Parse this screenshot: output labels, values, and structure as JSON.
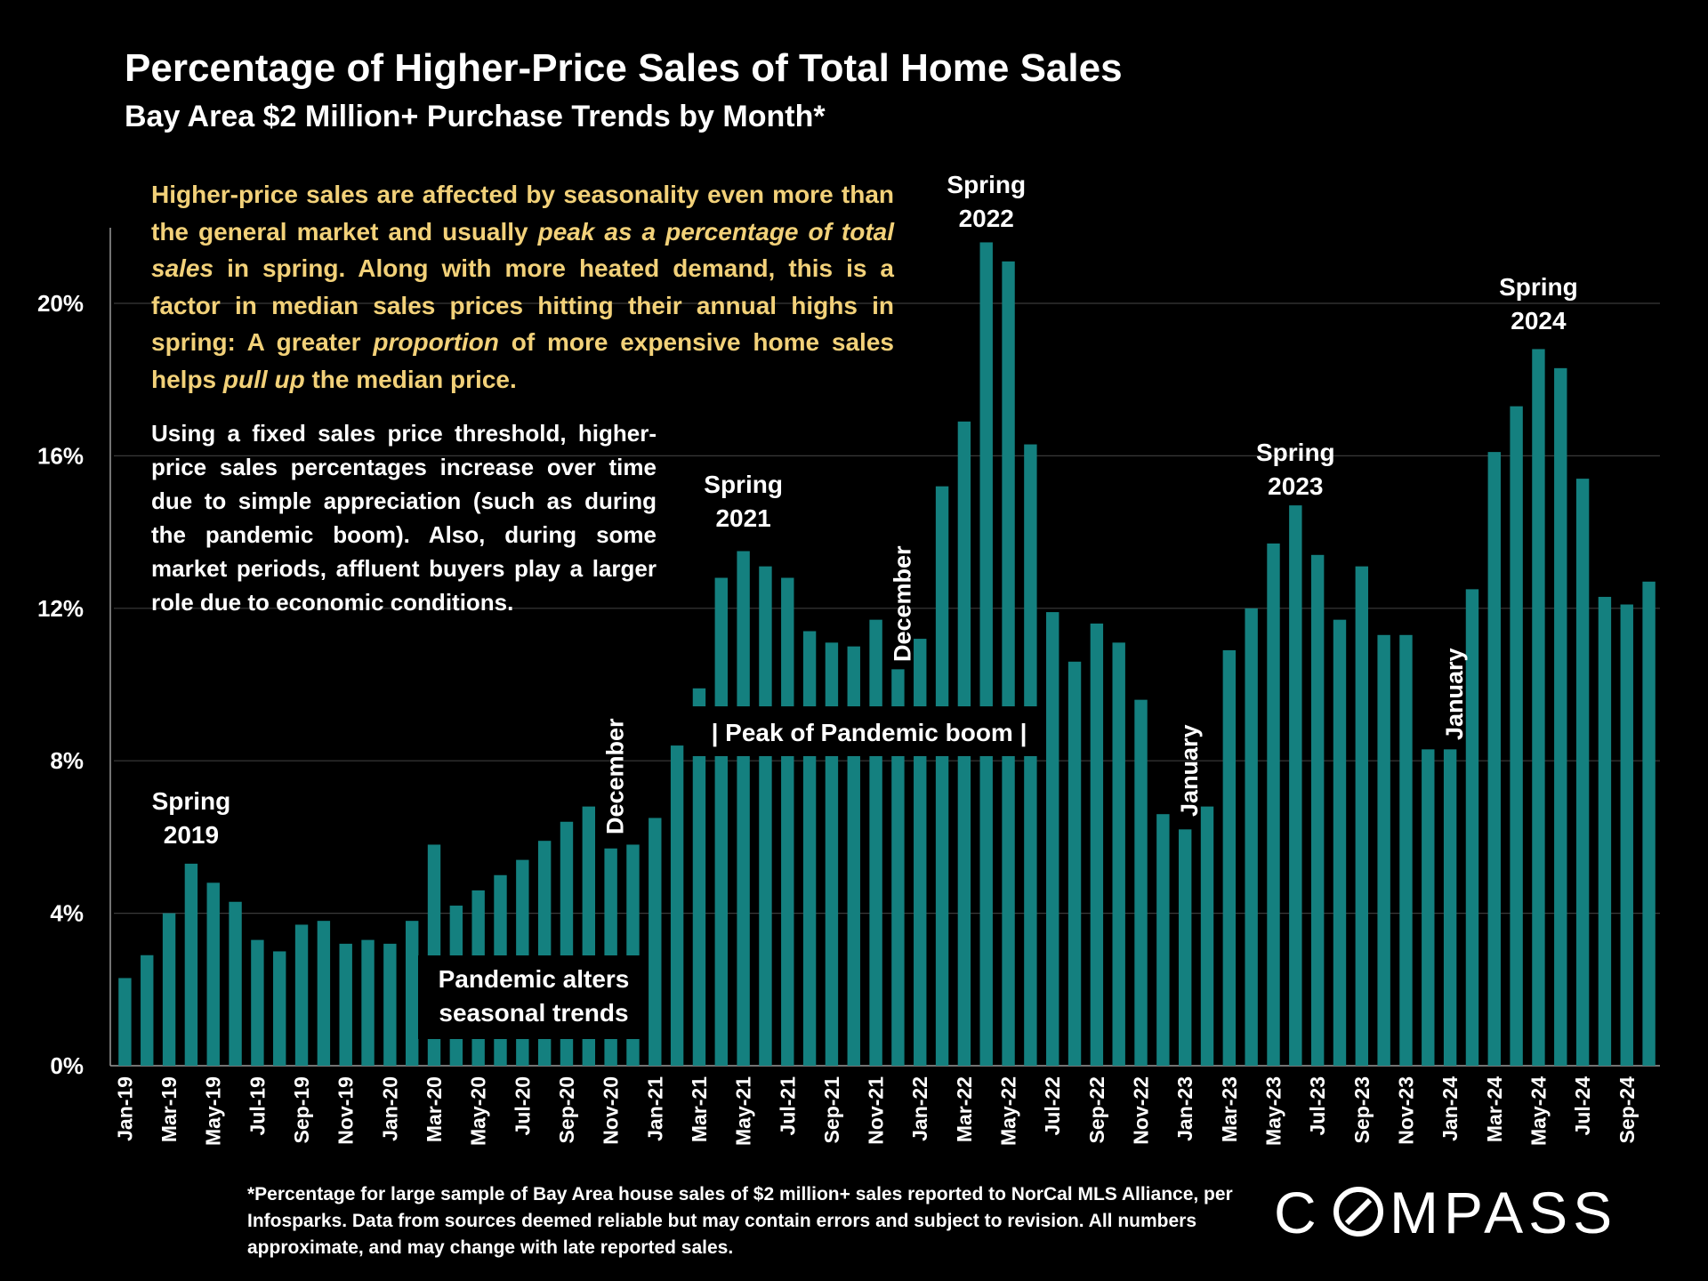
{
  "title": "Percentage of Higher-Price Sales of Total Home Sales",
  "subtitle": "Bay Area $2 Million+ Purchase Trends by Month*",
  "note_yellow": {
    "p1": "Higher-price sales are affected by seasonality even more than the general market and usually ",
    "em1": "peak as a percentage of total sales",
    "p2": " in spring. Along with more heated demand, this is a factor in median sales prices hitting their annual highs in spring:  A greater ",
    "em2": "proportion",
    "p3": " of more expensive home sales helps ",
    "em3": "pull up",
    "p4": " the median price."
  },
  "note_white": "Using a fixed sales price threshold, higher-price sales percentages increase over time due to simple appreciation (such as during the pandemic boom). Also, during some market periods, affluent buyers play a larger role due to economic conditions.",
  "footnote": "*Percentage for large sample of  Bay Area house sales of $2 million+ sales reported to NorCal MLS Alliance, per Infosparks. Data from sources deemed reliable but may contain errors and subject to revision. All numbers approximate, and may change with late reported sales.",
  "logo_text": "COMPASS",
  "colors": {
    "bar": "#14807f",
    "background": "#000000",
    "note_text": "#f2d179",
    "grid": "#3a3a3a"
  },
  "chart_data": {
    "type": "bar",
    "title": "Percentage of Higher-Price Sales of Total Home Sales",
    "subtitle": "Bay Area $2 Million+ Purchase Trends by Month*",
    "xlabel": "",
    "ylabel": "",
    "ylim": [
      0,
      22
    ],
    "y_ticks": [
      0,
      4,
      8,
      12,
      16,
      20
    ],
    "y_tick_labels": [
      "0%",
      "4%",
      "8%",
      "12%",
      "16%",
      "20%"
    ],
    "grid": true,
    "categories": [
      "Jan-19",
      "Feb-19",
      "Mar-19",
      "Apr-19",
      "May-19",
      "Jun-19",
      "Jul-19",
      "Aug-19",
      "Sep-19",
      "Oct-19",
      "Nov-19",
      "Dec-19",
      "Jan-20",
      "Feb-20",
      "Mar-20",
      "Apr-20",
      "May-20",
      "Jun-20",
      "Jul-20",
      "Aug-20",
      "Sep-20",
      "Oct-20",
      "Nov-20",
      "Dec-20",
      "Jan-21",
      "Feb-21",
      "Mar-21",
      "Apr-21",
      "May-21",
      "Jun-21",
      "Jul-21",
      "Aug-21",
      "Sep-21",
      "Oct-21",
      "Nov-21",
      "Dec-21",
      "Jan-22",
      "Feb-22",
      "Mar-22",
      "Apr-22",
      "May-22",
      "Jun-22",
      "Jul-22",
      "Aug-22",
      "Sep-22",
      "Oct-22",
      "Nov-22",
      "Dec-22",
      "Jan-23",
      "Feb-23",
      "Mar-23",
      "Apr-23",
      "May-23",
      "Jun-23",
      "Jul-23",
      "Aug-23",
      "Sep-23",
      "Oct-23",
      "Nov-23",
      "Dec-23",
      "Jan-24",
      "Feb-24",
      "Mar-24",
      "Apr-24",
      "May-24",
      "Jun-24",
      "Jul-24",
      "Aug-24",
      "Sep-24",
      "Oct-24"
    ],
    "x_tick_labels": [
      "Jan-19",
      "Mar-19",
      "May-19",
      "Jul-19",
      "Sep-19",
      "Nov-19",
      "Jan-20",
      "Mar-20",
      "May-20",
      "Jul-20",
      "Sep-20",
      "Nov-20",
      "Jan-21",
      "Mar-21",
      "May-21",
      "Jul-21",
      "Sep-21",
      "Nov-21",
      "Jan-22",
      "Mar-22",
      "May-22",
      "Jul-22",
      "Sep-22",
      "Nov-22",
      "Jan-23",
      "Mar-23",
      "May-23",
      "Jul-23",
      "Sep-23",
      "Nov-23",
      "Jan-24",
      "Mar-24",
      "May-24",
      "Jul-24",
      "Sep-24"
    ],
    "values": [
      2.3,
      2.9,
      4.0,
      5.3,
      4.8,
      4.3,
      3.3,
      3.0,
      3.7,
      3.8,
      3.2,
      3.3,
      3.2,
      3.8,
      5.8,
      4.2,
      4.6,
      5.0,
      5.4,
      5.9,
      6.4,
      6.8,
      5.7,
      5.8,
      6.5,
      8.4,
      9.9,
      12.8,
      13.5,
      13.1,
      12.8,
      11.4,
      11.1,
      11.0,
      11.7,
      10.4,
      11.2,
      15.2,
      16.9,
      21.6,
      21.1,
      16.3,
      11.9,
      10.6,
      11.6,
      11.1,
      9.6,
      6.6,
      6.2,
      6.8,
      10.9,
      12.0,
      13.7,
      14.7,
      13.4,
      11.7,
      13.1,
      11.3,
      11.3,
      8.3,
      8.3,
      12.5,
      16.1,
      17.3,
      18.8,
      18.3,
      15.4,
      12.3,
      12.1,
      12.7
    ],
    "annotations": [
      {
        "id": "spring-2019",
        "lines": [
          "Spring",
          "2019"
        ],
        "month": "Apr-19"
      },
      {
        "id": "spring-2021",
        "lines": [
          "Spring",
          "2021"
        ],
        "month": "May-21"
      },
      {
        "id": "spring-2022",
        "lines": [
          "Spring",
          "2022"
        ],
        "month": "Apr-22"
      },
      {
        "id": "spring-2023",
        "lines": [
          "Spring",
          "2023"
        ],
        "month": "Jun-23"
      },
      {
        "id": "spring-2024",
        "lines": [
          "Spring",
          "2024"
        ],
        "month": "May-24"
      },
      {
        "id": "december-2020",
        "text": "December",
        "month": "Nov-20",
        "vertical": true
      },
      {
        "id": "december-2021",
        "text": "December",
        "month": "Dec-21",
        "vertical": true
      },
      {
        "id": "january-2023",
        "text": "January",
        "month": "Jan-23",
        "vertical": true
      },
      {
        "id": "january-2024",
        "text": "January",
        "month": "Jan-24",
        "vertical": true
      }
    ],
    "callouts": [
      {
        "id": "pandemic-alters",
        "lines": [
          "Pandemic alters",
          "seasonal trends"
        ]
      },
      {
        "id": "peak-pandemic",
        "text": "| Peak of Pandemic boom |"
      }
    ]
  }
}
